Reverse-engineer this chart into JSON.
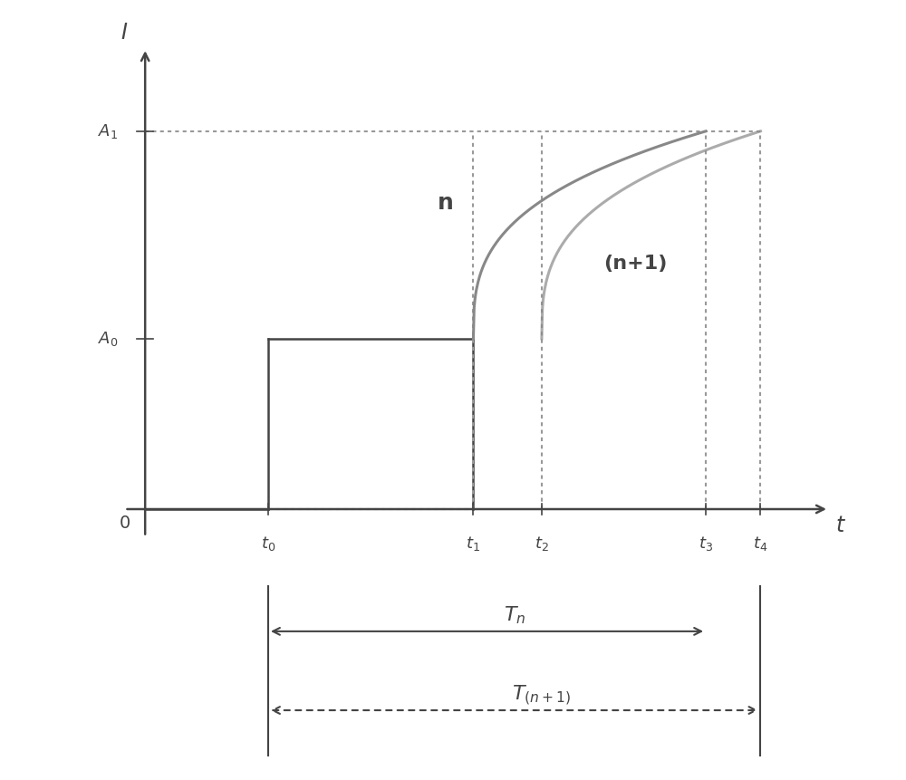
{
  "fig_width": 10.0,
  "fig_height": 8.61,
  "dpi": 100,
  "bg_color": "#ffffff",
  "line_color": "#444444",
  "curve_color": "#888888",
  "dot_color": "#999999",
  "t0": 0.18,
  "t1": 0.48,
  "t2": 0.58,
  "t3": 0.82,
  "t4": 0.9,
  "A0": 0.37,
  "A1": 0.82,
  "label_n": "n",
  "label_n1": "(n+1)",
  "label_A0": "A_0",
  "label_A1": "A_1",
  "label_0": "0",
  "label_t0": "t_0",
  "label_t1": "t_1",
  "label_t2": "t_2",
  "label_t3": "t_3",
  "label_t4": "t_4",
  "label_Tn": "T_n",
  "label_Tn1": "T_{(n+1)}"
}
